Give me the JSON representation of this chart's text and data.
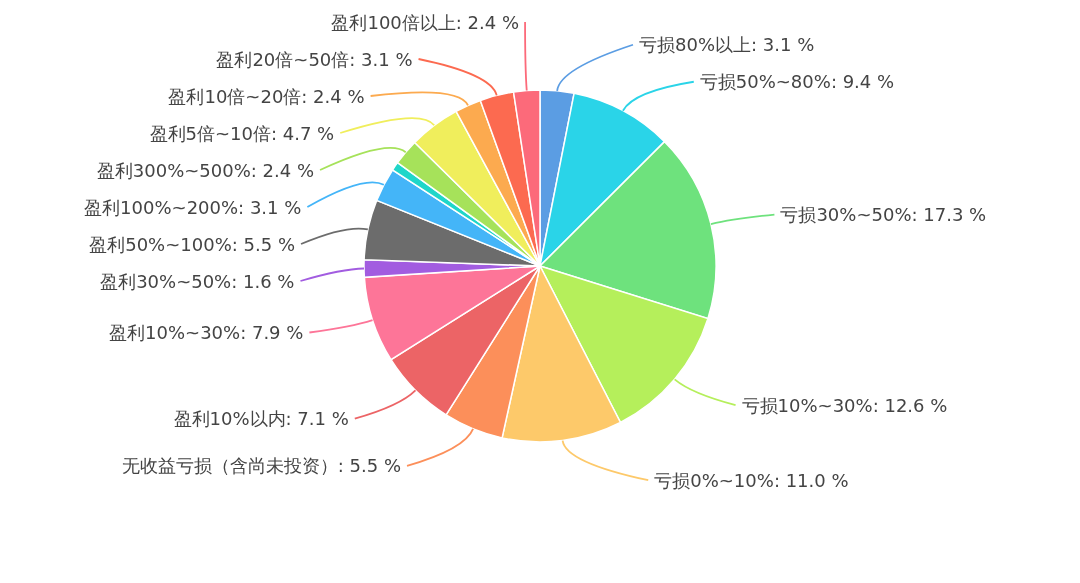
{
  "chart_data": {
    "type": "pie",
    "categories": [
      "亏损80%以上",
      "亏损50%~80%",
      "亏损30%~50%",
      "亏损10%~30%",
      "亏损0%~10%",
      "无收益亏损（含尚未投资）",
      "盈利10%以内",
      "盈利10%~30%",
      "盈利30%~50%",
      "盈利50%~100%",
      "盈利100%~200%",
      null,
      "盈利300%~500%",
      "盈利5倍~10倍",
      "盈利10倍~20倍",
      "盈利20倍~50倍",
      "盈利100倍以上"
    ],
    "values": [
      3.1,
      9.4,
      17.3,
      12.6,
      11.0,
      5.5,
      7.1,
      7.9,
      1.6,
      5.5,
      3.1,
      0.8,
      2.4,
      4.7,
      2.4,
      3.1,
      2.4
    ],
    "value_labels": [
      "3.1 %",
      "9.4 %",
      "17.3 %",
      "12.6 %",
      "11.0 %",
      "5.5 %",
      "7.1 %",
      "7.9 %",
      "1.6 %",
      "5.5 %",
      "3.1 %",
      null,
      "2.4 %",
      "4.7 %",
      "2.4 %",
      "3.1 %",
      "2.4 %"
    ],
    "colors": [
      "#5b9de3",
      "#2ad4e8",
      "#6ee27d",
      "#b5ef5b",
      "#fdc96a",
      "#fc8f5a",
      "#ec6466",
      "#fd7598",
      "#a25ce0",
      "#6c6c6c",
      "#44b5f8",
      "#1fd6c9",
      "#a6e25a",
      "#f0ee5c",
      "#fcaa4f",
      "#fc6a50",
      "#fc6a7a"
    ]
  }
}
